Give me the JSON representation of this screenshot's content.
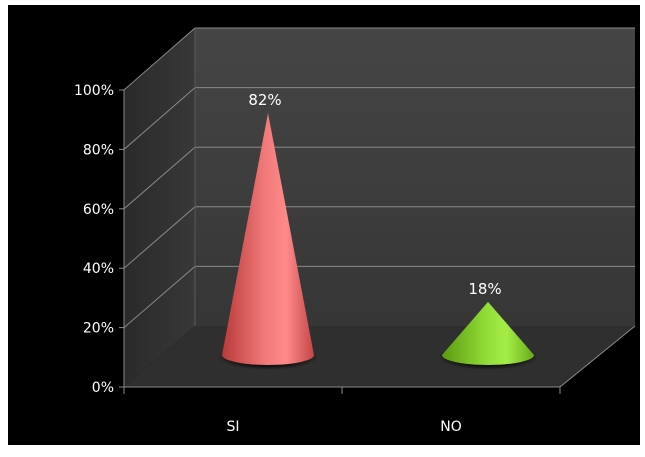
{
  "chart_data": {
    "type": "bar",
    "style": "3d-cone",
    "categories": [
      "SI",
      "NO"
    ],
    "values": [
      82,
      18
    ],
    "data_labels": [
      "82%",
      "18%"
    ],
    "y_ticks": [
      "0%",
      "20%",
      "40%",
      "60%",
      "80%",
      "100%"
    ],
    "ylim": [
      0,
      100
    ],
    "grid": true,
    "legend": "none",
    "colors": {
      "frame": "#000000",
      "wall": "#3b3b3b",
      "floor": "#2e2e2e",
      "grid": "#8a8a8a",
      "text": "#ffffff",
      "series": [
        "#e85a5a",
        "#7cc521"
      ]
    }
  }
}
